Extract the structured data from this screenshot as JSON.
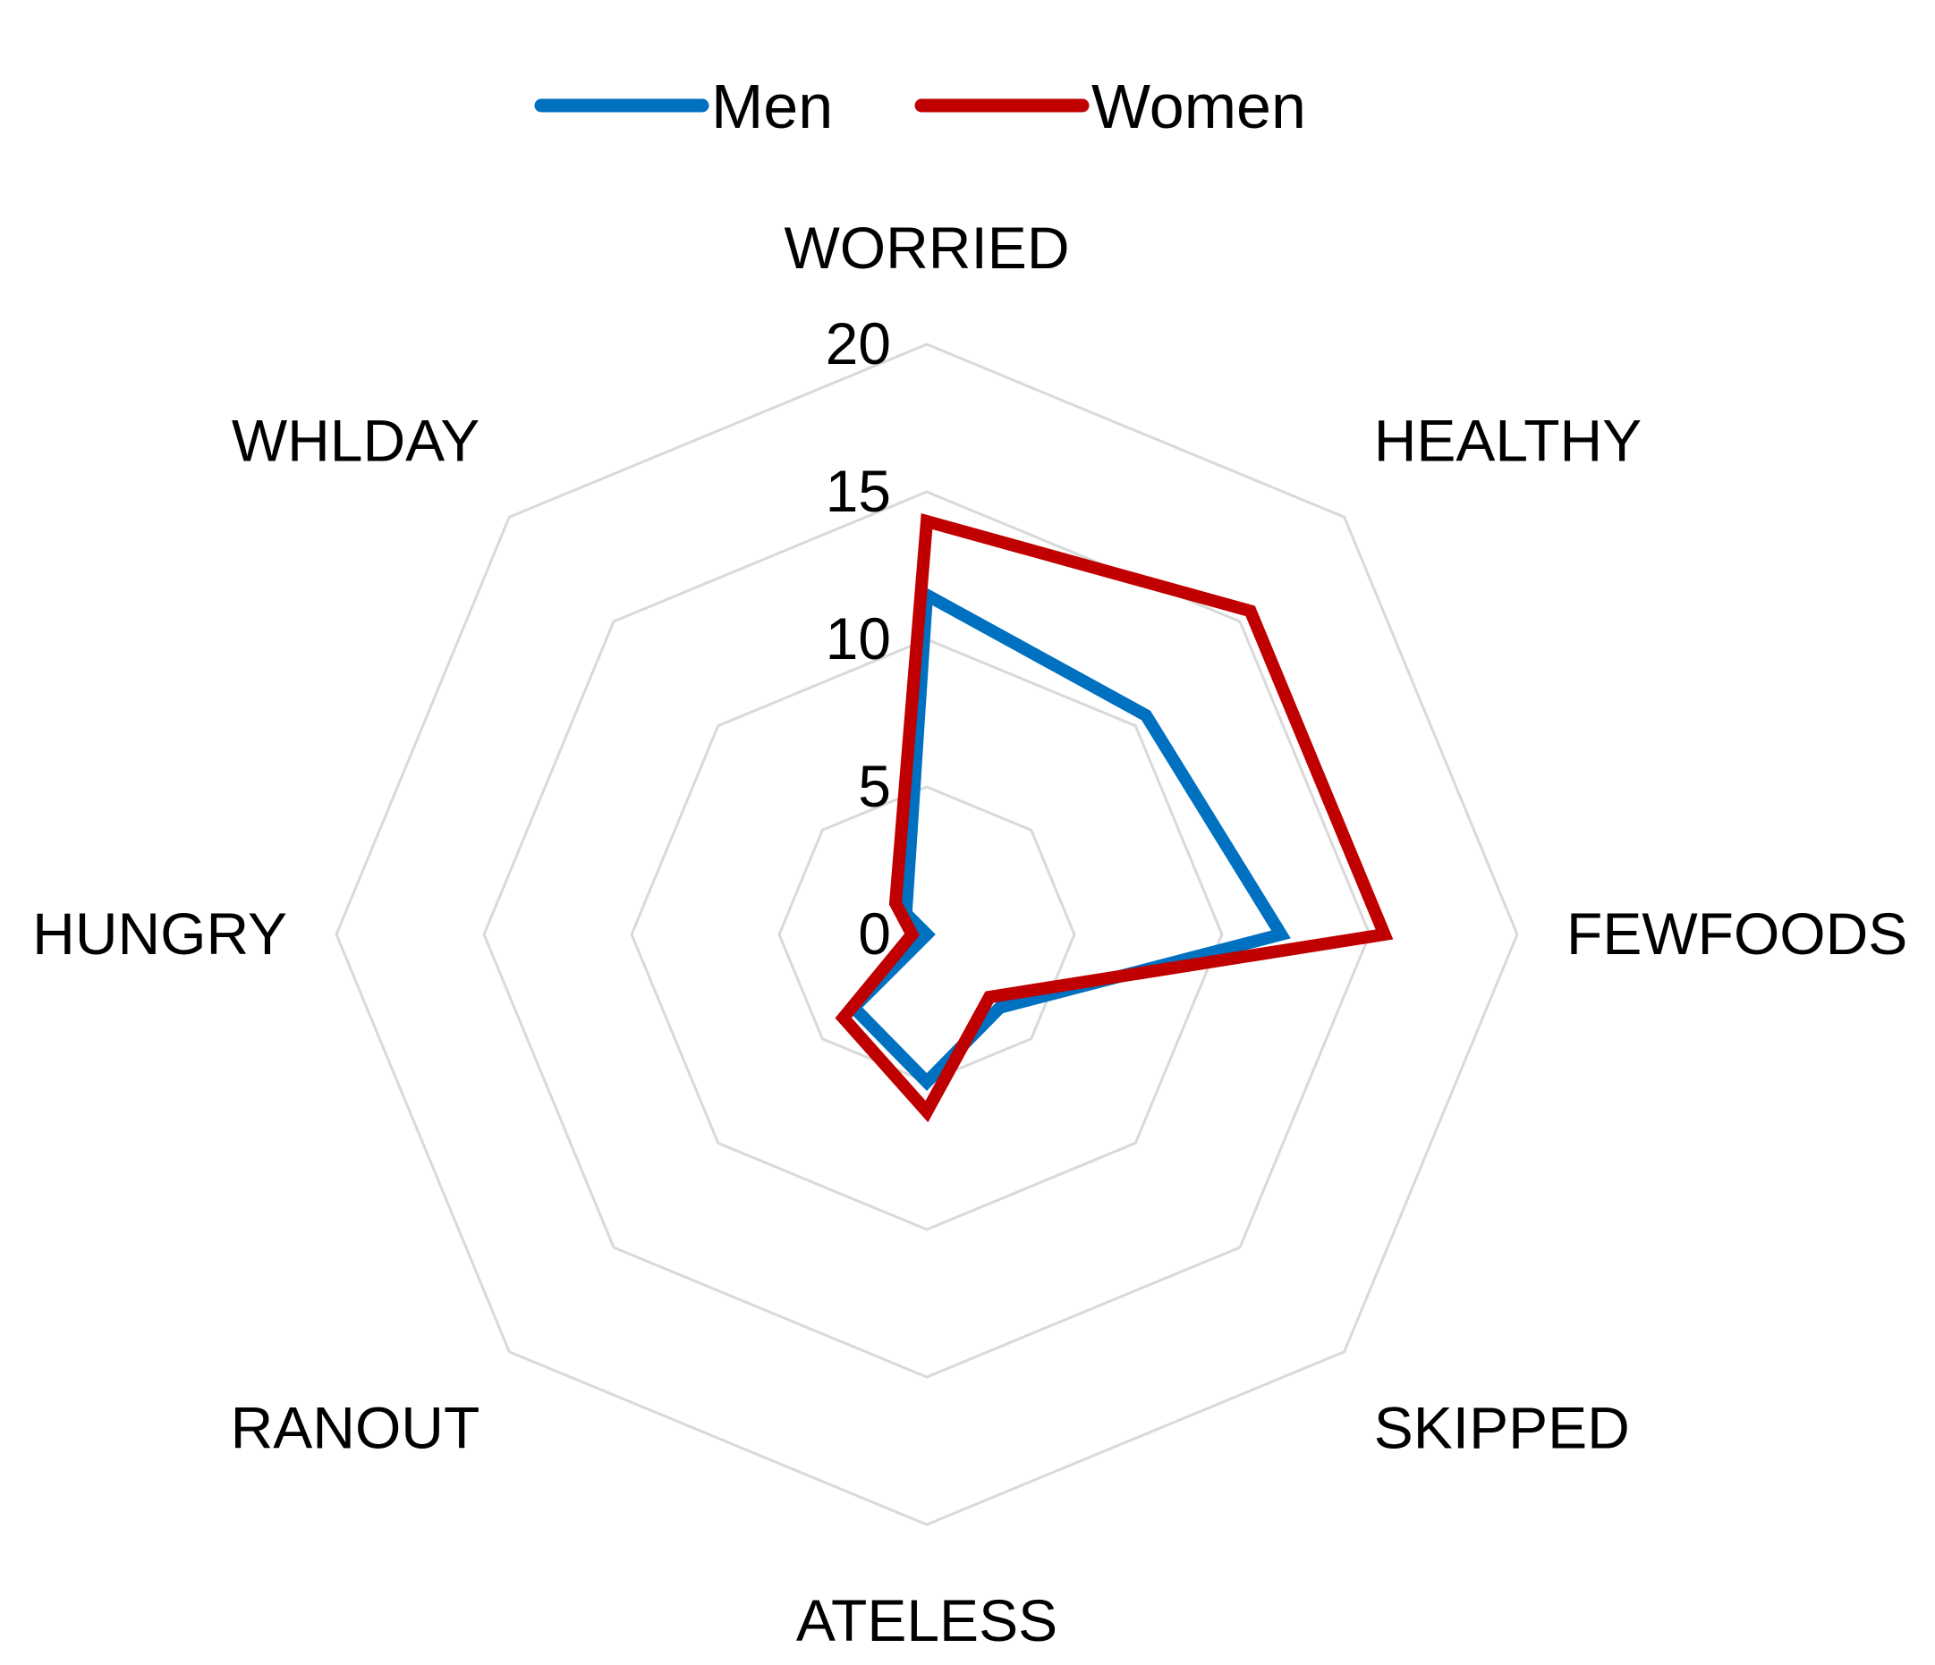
{
  "chart_data": {
    "type": "radar",
    "categories": [
      "WORRIED",
      "HEALTHY",
      "FEWFOODS",
      "SKIPPED",
      "ATELESS",
      "RANOUT",
      "HUNGRY",
      "WHLDAY"
    ],
    "series": [
      {
        "name": "Men",
        "color": "#0070c0",
        "values": [
          11.5,
          10.5,
          12.0,
          3.5,
          5.0,
          3.5,
          0.0,
          1.0
        ]
      },
      {
        "name": "Women",
        "color": "#c00000",
        "values": [
          14.0,
          15.5,
          15.5,
          3.0,
          6.0,
          4.0,
          0.5,
          1.5
        ]
      }
    ],
    "r_ticks": [
      "0",
      "5",
      "10",
      "15",
      "20"
    ],
    "rlim": [
      0,
      20
    ],
    "grid": true,
    "gridline_color": "#d9d9d9",
    "legend_position": "top",
    "title": ""
  }
}
